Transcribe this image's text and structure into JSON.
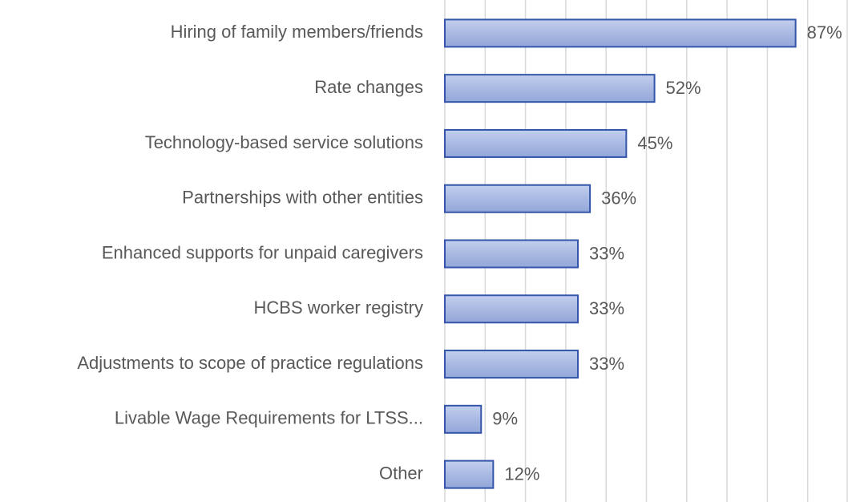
{
  "chart_data": {
    "type": "bar",
    "orientation": "horizontal",
    "categories": [
      "Hiring of family members/friends",
      "Rate changes",
      "Technology-based service solutions",
      "Partnerships with other entities",
      "Enhanced supports for unpaid caregivers",
      "HCBS worker registry",
      "Adjustments to scope of practice regulations",
      "Livable Wage Requirements for LTSS...",
      "Other"
    ],
    "values": [
      87,
      52,
      45,
      36,
      33,
      33,
      33,
      9,
      12
    ],
    "value_labels": [
      "87%",
      "52%",
      "45%",
      "36%",
      "33%",
      "33%",
      "33%",
      "9%",
      "12%"
    ],
    "color": "#a9b9e2",
    "edge_color": "#3355aa",
    "xlim": [
      0,
      100
    ],
    "xticks": [
      0,
      10,
      20,
      30,
      40,
      50,
      60,
      70,
      80,
      90,
      100
    ],
    "grid": true
  }
}
